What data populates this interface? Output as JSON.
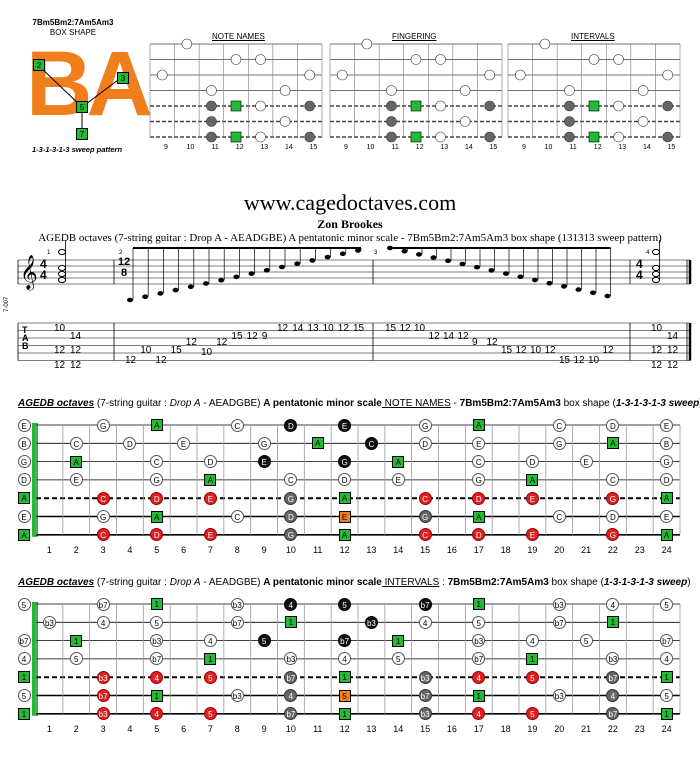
{
  "box_logo": {
    "title": "7Bm5Bm2:7Am5Am3",
    "shape_label": "BOX SHAPE",
    "big_letters": "BA",
    "sweep": "1-3-1-3-1-3 sweep pattern",
    "nodes": [
      "2",
      "3",
      "5",
      "7"
    ],
    "color": "#f07e1c"
  },
  "mini_panels": [
    {
      "title": "NOTE NAMES"
    },
    {
      "title": "FINGERING"
    },
    {
      "title": "INTERVALS"
    }
  ],
  "mini_frets": [
    "9",
    "10",
    "11",
    "12",
    "13",
    "14",
    "15"
  ],
  "header": {
    "site": "www.cagedoctaves.com",
    "author": "Zon Brookes",
    "subtitle": "AGEDB octaves (7-string guitar : Drop A - AEADGBE) A pentatonic minor scale - 7Bm5Bm2:7Am5Am3 box shape (131313 sweep pattern)"
  },
  "score": {
    "time_sig_1": [
      "4",
      "4"
    ],
    "time_sig_2": [
      "12",
      "8"
    ],
    "tab_label": [
      "T",
      "A",
      "B"
    ],
    "measure_numbers": [
      "1",
      "2",
      "3",
      "4"
    ],
    "tab_measure1": [
      [
        "10",
        "14"
      ],
      [
        "12",
        "12"
      ],
      [
        "12",
        "12"
      ]
    ],
    "tab_run_up": [
      "12",
      "10",
      "12",
      "15",
      "12",
      "10",
      "12",
      "15",
      "12",
      "9",
      "12",
      "14",
      "13",
      "10",
      "12",
      "15"
    ],
    "tab_run_down": [
      "15",
      "12",
      "10",
      "12",
      "14",
      "12",
      "9",
      "12",
      "15",
      "12",
      "10",
      "12",
      "15",
      "12",
      "10",
      "12"
    ],
    "tab_measure4": [
      [
        "10",
        "14"
      ],
      [
        "12",
        "12"
      ],
      [
        "12",
        "12"
      ]
    ],
    "side_label": "7-007"
  },
  "fretboard_notes": {
    "title_parts": {
      "a": "AGEDB octaves",
      "b": " (7-string guitar : ",
      "c": "Drop A",
      "d": " - AEADGBE) ",
      "e": "A pentatonic minor scale",
      "f": " NOTE NAMES",
      "g": " - ",
      "h": "7Bm5Bm2:7Am5Am3",
      "i": " box shape (",
      "j": "1-3-1-3-1-3 sweep",
      "k": ")"
    },
    "open_labels": [
      "E",
      "B",
      "G",
      "D",
      "A",
      "E",
      "A"
    ],
    "frets": [
      "1",
      "2",
      "3",
      "4",
      "5",
      "6",
      "7",
      "8",
      "9",
      "10",
      "11",
      "12",
      "13",
      "14",
      "15",
      "16",
      "17",
      "18",
      "19",
      "20",
      "21",
      "22",
      "23",
      "24"
    ]
  },
  "fretboard_intervals": {
    "title_parts": {
      "a": "AGEDB octaves",
      "b": " (7-string guitar : ",
      "c": "Drop A",
      "d": " - AEADGBE) ",
      "e": "A pentatonic minor scale",
      "f": " INTERVALS",
      "g": " : ",
      "h": "7Bm5Bm2:7Am5Am3",
      "i": " box shape (",
      "j": "1-3-1-3-1-3 sweep",
      "k": ")"
    },
    "open_labels": [
      "5",
      "b3",
      "b7",
      "4",
      "1",
      "5",
      "1"
    ],
    "frets": [
      "1",
      "2",
      "3",
      "4",
      "5",
      "6",
      "7",
      "8",
      "9",
      "10",
      "11",
      "12",
      "13",
      "14",
      "15",
      "16",
      "17",
      "18",
      "19",
      "20",
      "21",
      "22",
      "23",
      "24"
    ]
  },
  "colors": {
    "root": "#22bb33",
    "fifth_red": "#e02020",
    "orange": "#f07e1c",
    "grey": "#666666",
    "black": "#111111"
  },
  "note_board": [
    [
      "E",
      "",
      "",
      "G",
      "",
      "A",
      "",
      "",
      "C",
      "",
      "D",
      "",
      "E",
      "",
      "",
      "G",
      "",
      "A",
      "",
      "",
      "C",
      "",
      "D",
      "",
      "E"
    ],
    [
      "B",
      "",
      "C",
      "",
      "D",
      "",
      "E",
      "",
      "",
      "G",
      "",
      "A",
      "",
      "C",
      "",
      "D",
      "",
      "E",
      "",
      "",
      "G",
      "",
      "A",
      "",
      "B"
    ],
    [
      "G",
      "",
      "A",
      "",
      "",
      "C",
      "",
      "D",
      "",
      "E",
      "",
      "",
      "G",
      "",
      "A",
      "",
      "",
      "C",
      "",
      "D",
      "",
      "E",
      "",
      "",
      "G"
    ],
    [
      "D",
      "",
      "E",
      "",
      "",
      "G",
      "",
      "A",
      "",
      "",
      "C",
      "",
      "D",
      "",
      "E",
      "",
      "",
      "G",
      "",
      "A",
      "",
      "",
      "C",
      "",
      "D"
    ],
    [
      "A",
      "",
      "",
      "C",
      "",
      "D",
      "",
      "E",
      "",
      "",
      "G",
      "",
      "A",
      "",
      "",
      "C",
      "",
      "D",
      "",
      "E",
      "",
      "",
      "G",
      "",
      "A"
    ],
    [
      "E",
      "",
      "",
      "G",
      "",
      "A",
      "",
      "",
      "C",
      "",
      "D",
      "",
      "E",
      "",
      "",
      "G",
      "",
      "A",
      "",
      "",
      "C",
      "",
      "D",
      "",
      "E"
    ],
    [
      "A",
      "",
      "",
      "C",
      "",
      "D",
      "",
      "E",
      "",
      "",
      "G",
      "",
      "A",
      "",
      "",
      "C",
      "",
      "D",
      "",
      "E",
      "",
      "",
      "G",
      "",
      "A"
    ]
  ],
  "interval_board": [
    [
      "5",
      "",
      "",
      "b7",
      "",
      "1",
      "",
      "",
      "b3",
      "",
      "4",
      "",
      "5",
      "",
      "",
      "b7",
      "",
      "1",
      "",
      "",
      "b3",
      "",
      "4",
      "",
      "5"
    ],
    [
      "",
      "b3",
      "",
      "4",
      "",
      "5",
      "",
      "",
      "b7",
      "",
      "1",
      "",
      "",
      "b3",
      "",
      "4",
      "",
      "5",
      "",
      "",
      "b7",
      "",
      "1",
      "",
      ""
    ],
    [
      "b7",
      "",
      "1",
      "",
      "",
      "b3",
      "",
      "4",
      "",
      "5",
      "",
      "",
      "b7",
      "",
      "1",
      "",
      "",
      "b3",
      "",
      "4",
      "",
      "5",
      "",
      "",
      "b7"
    ],
    [
      "4",
      "",
      "5",
      "",
      "",
      "b7",
      "",
      "1",
      "",
      "",
      "b3",
      "",
      "4",
      "",
      "5",
      "",
      "",
      "b7",
      "",
      "1",
      "",
      "",
      "b3",
      "",
      "4"
    ],
    [
      "1",
      "",
      "",
      "b3",
      "",
      "4",
      "",
      "5",
      "",
      "",
      "b7",
      "",
      "1",
      "",
      "",
      "b3",
      "",
      "4",
      "",
      "5",
      "",
      "",
      "b7",
      "",
      "1"
    ],
    [
      "5",
      "",
      "",
      "b7",
      "",
      "1",
      "",
      "",
      "b3",
      "",
      "4",
      "",
      "5",
      "",
      "",
      "b7",
      "",
      "1",
      "",
      "",
      "b3",
      "",
      "4",
      "",
      "5"
    ],
    [
      "1",
      "",
      "",
      "b3",
      "",
      "4",
      "",
      "5",
      "",
      "",
      "b7",
      "",
      "1",
      "",
      "",
      "b3",
      "",
      "4",
      "",
      "5",
      "",
      "",
      "b7",
      "",
      "1"
    ]
  ]
}
